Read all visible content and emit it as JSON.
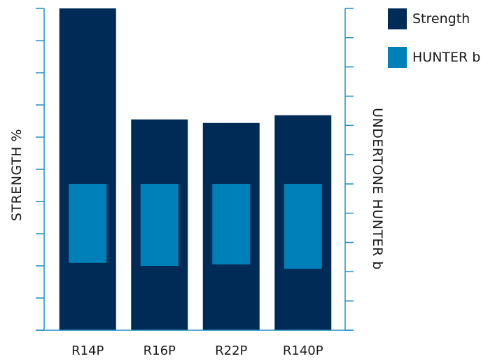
{
  "chart_data": {
    "type": "bar",
    "categories": [
      "R14P",
      "R16P",
      "R22P",
      "R140P"
    ],
    "series": [
      {
        "name": "Strength",
        "axis": "left",
        "color": "#002b57",
        "values": [
          100,
          65.5,
          64.4,
          66.8
        ]
      },
      {
        "name": "HUNTER b",
        "axis": "right",
        "color": "#0080b8",
        "from": [
          -6,
          -6,
          -6,
          -6
        ],
        "to": [
          -8.7,
          -8.8,
          -8.75,
          -8.9
        ]
      }
    ],
    "ylabel": "STRENGTH %",
    "y2label": "UNDERTONE HUNTER b",
    "ylim": [
      0,
      100
    ],
    "y2lim": [
      -11,
      0
    ],
    "tick_labels_shown": false,
    "legend_position": "top-right"
  }
}
